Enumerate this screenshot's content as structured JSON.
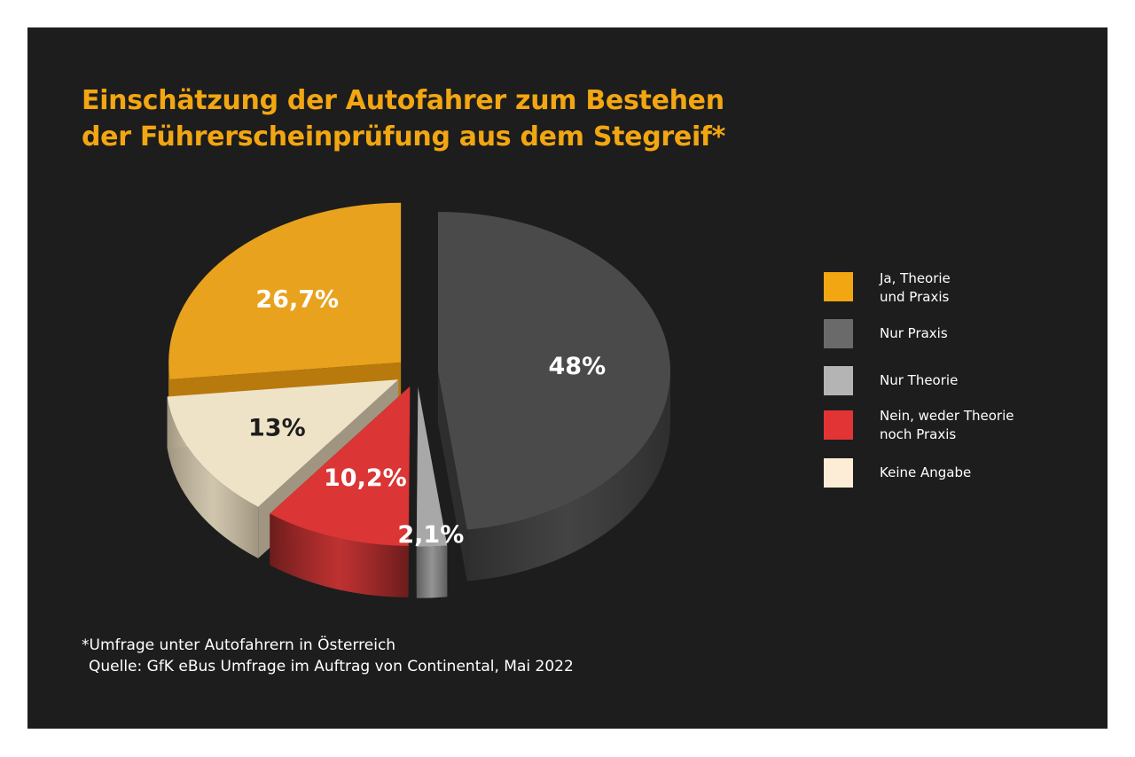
{
  "chart_data": {
    "type": "pie",
    "title_lines": [
      "Einschätzung der Autofahrer zum Bestehen",
      "der Führerscheinprüfung aus dem Stegreif*"
    ],
    "slices": [
      {
        "name": "Ja, Theorie und Praxis",
        "legend_label": "Ja, Theorie\nund Praxis",
        "value": 26.7,
        "label": "26,7%",
        "color": "#e8a21e",
        "side_color": "#b87a0c",
        "label_color": "#ffffff"
      },
      {
        "name": "Nur Praxis",
        "legend_label": "Nur Praxis",
        "value": 48,
        "label": "48%",
        "color": "#4a4a4a",
        "side_color": "#2e2e2e",
        "label_color": "#ffffff"
      },
      {
        "name": "Nur Theorie",
        "legend_label": "Nur Theorie",
        "value": 2.1,
        "label": "2,1%",
        "color": "#a8a8a8",
        "side_color": "#5c5c5c",
        "label_color": "#ffffff"
      },
      {
        "name": "Nein, weder Theorie noch Praxis",
        "legend_label": "Nein, weder Theorie\nnoch Praxis",
        "value": 10.2,
        "label": "10,2%",
        "color": "#db3535",
        "side_color": "#6b1c1c",
        "label_color": "#ffffff"
      },
      {
        "name": "Keine Angabe",
        "legend_label": "Keine Angabe",
        "value": 13,
        "label": "13%",
        "color": "#efe3c7",
        "side_color": "#a09580",
        "label_color": "#1d1d1d"
      }
    ],
    "legend_swatches": [
      "#f2a612",
      "#6a6a6a",
      "#b4b4b4",
      "#e23434",
      "#fdecd6"
    ],
    "legend_position": "right"
  },
  "footnote": {
    "line1": "*Umfrage unter Autofahrern in Österreich",
    "line2": "Quelle: GfK eBus Umfrage im Auftrag von Continental, Mai 2022"
  },
  "colors": {
    "background": "#1d1d1d",
    "title": "#f2a612"
  }
}
